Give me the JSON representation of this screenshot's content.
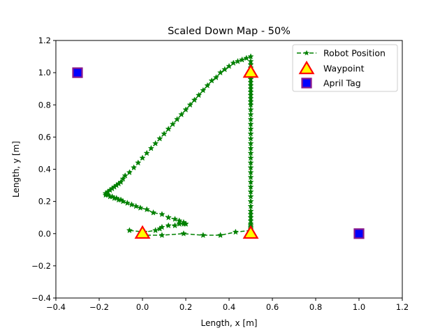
{
  "chart_data": {
    "type": "scatter",
    "title": "Scaled Down Map - 50%",
    "xlabel": "Length, x [m]",
    "ylabel": "Length, y [m]",
    "xlim": [
      -0.4,
      1.2
    ],
    "ylim": [
      -0.4,
      1.2
    ],
    "xticks": [
      -0.4,
      -0.2,
      0.0,
      0.2,
      0.4,
      0.6,
      0.8,
      1.0,
      1.2
    ],
    "yticks": [
      -0.4,
      -0.2,
      0.0,
      0.2,
      0.4,
      0.6,
      0.8,
      1.0,
      1.2
    ],
    "xtick_labels": [
      "−0.4",
      "−0.2",
      "0.0",
      "0.2",
      "0.4",
      "0.6",
      "0.8",
      "1.0",
      "1.2"
    ],
    "ytick_labels": [
      "−0.4",
      "−0.2",
      "0.0",
      "0.2",
      "0.4",
      "0.6",
      "0.8",
      "1.0",
      "1.2"
    ],
    "grid": false,
    "legend_position": "top-right",
    "series": [
      {
        "name": "Robot Position",
        "style": "dashed-line-star-markers",
        "color": "#008000",
        "x": [
          -0.06,
          0.01,
          0.06,
          0.08,
          0.09,
          0.12,
          0.15,
          0.17,
          0.19,
          0.2,
          0.2,
          0.19,
          0.17,
          0.15,
          0.12,
          0.09,
          0.05,
          0.02,
          -0.01,
          -0.03,
          -0.05,
          -0.07,
          -0.09,
          -0.1,
          -0.11,
          -0.12,
          -0.13,
          -0.14,
          -0.15,
          -0.16,
          -0.17,
          -0.17,
          -0.16,
          -0.15,
          -0.14,
          -0.13,
          -0.12,
          -0.11,
          -0.1,
          -0.09,
          -0.08,
          -0.06,
          -0.04,
          -0.02,
          0.0,
          0.02,
          0.04,
          0.06,
          0.08,
          0.1,
          0.12,
          0.14,
          0.16,
          0.18,
          0.2,
          0.22,
          0.24,
          0.26,
          0.28,
          0.3,
          0.32,
          0.34,
          0.36,
          0.38,
          0.4,
          0.42,
          0.44,
          0.46,
          0.48,
          0.5,
          0.5,
          0.5,
          0.5,
          0.5,
          0.5,
          0.5,
          0.5,
          0.5,
          0.5,
          0.5,
          0.5,
          0.5,
          0.5,
          0.5,
          0.5,
          0.5,
          0.5,
          0.5,
          0.5,
          0.5,
          0.5,
          0.5,
          0.5,
          0.5,
          0.5,
          0.5,
          0.5,
          0.5,
          0.5,
          0.5,
          0.5,
          0.5,
          0.5,
          0.5,
          0.5,
          0.5,
          0.5,
          0.5,
          0.5,
          0.5,
          0.5,
          0.5,
          0.5,
          0.5,
          0.5,
          0.5,
          0.5,
          0.5,
          0.5,
          0.5,
          0.5,
          0.5,
          0.5,
          0.43,
          0.36,
          0.28,
          0.19,
          0.09,
          0.01
        ],
        "y": [
          0.02,
          0.01,
          0.02,
          0.03,
          0.04,
          0.05,
          0.05,
          0.06,
          0.06,
          0.06,
          0.06,
          0.07,
          0.08,
          0.09,
          0.1,
          0.12,
          0.13,
          0.15,
          0.16,
          0.17,
          0.18,
          0.19,
          0.2,
          0.21,
          0.21,
          0.22,
          0.22,
          0.23,
          0.23,
          0.24,
          0.24,
          0.25,
          0.26,
          0.27,
          0.28,
          0.29,
          0.3,
          0.31,
          0.32,
          0.34,
          0.36,
          0.38,
          0.41,
          0.44,
          0.47,
          0.5,
          0.53,
          0.56,
          0.59,
          0.62,
          0.65,
          0.68,
          0.71,
          0.74,
          0.77,
          0.8,
          0.83,
          0.86,
          0.89,
          0.92,
          0.95,
          0.97,
          1.0,
          1.02,
          1.04,
          1.06,
          1.07,
          1.08,
          1.09,
          1.1,
          1.07,
          1.05,
          1.03,
          1.0,
          0.98,
          0.96,
          0.94,
          0.92,
          0.9,
          0.88,
          0.86,
          0.84,
          0.82,
          0.8,
          0.77,
          0.74,
          0.71,
          0.68,
          0.65,
          0.62,
          0.59,
          0.56,
          0.53,
          0.5,
          0.47,
          0.44,
          0.41,
          0.38,
          0.35,
          0.32,
          0.29,
          0.26,
          0.23,
          0.2,
          0.17,
          0.14,
          0.12,
          0.1,
          0.08,
          0.06,
          0.05,
          0.04,
          0.03,
          0.03,
          0.02,
          0.02,
          0.02,
          0.02,
          0.02,
          0.02,
          0.02,
          0.02,
          0.02,
          0.01,
          -0.01,
          -0.01,
          0.0,
          -0.01,
          -0.01
        ]
      },
      {
        "name": "Waypoint",
        "style": "triangle-markers",
        "color": "#ffff00",
        "edge_color": "#ff0000",
        "x": [
          0.0,
          0.5,
          0.5
        ],
        "y": [
          0.0,
          0.0,
          1.0
        ]
      },
      {
        "name": "April Tag",
        "style": "square-markers",
        "color": "#0000ff",
        "edge_color": "#8b1a8b",
        "x": [
          -0.3,
          1.0
        ],
        "y": [
          1.0,
          0.0
        ]
      }
    ]
  }
}
